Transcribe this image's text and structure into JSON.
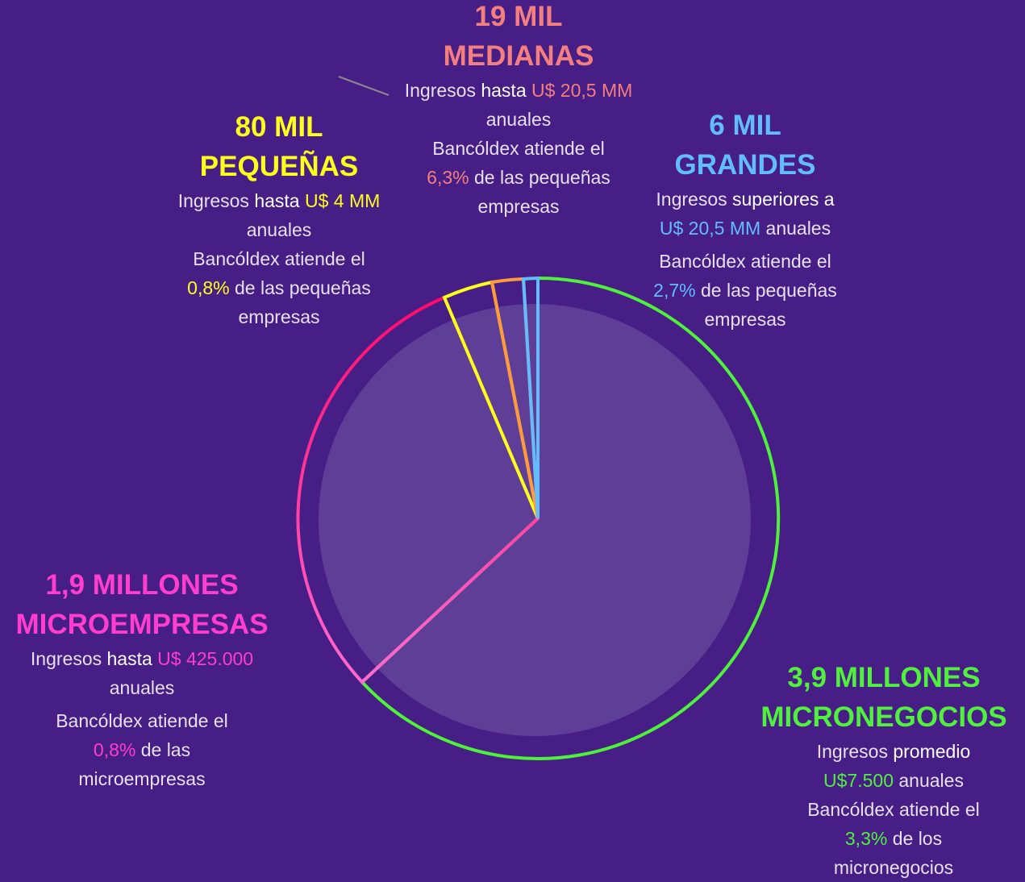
{
  "segments": [
    {
      "heading": [
        "19 MIL",
        "MEDIANAS"
      ],
      "body": [
        [
          "Ingresos",
          "hasta",
          "U$ 20,5 MM"
        ],
        [
          "anuales"
        ],
        [
          "Bancóldex atiende el"
        ],
        [
          "6,3%",
          "de las pequeñas"
        ],
        [
          "empresas"
        ]
      ]
    },
    {
      "heading": [
        "80 MIL",
        "PEQUEÑAS"
      ],
      "body": [
        [
          "Ingresos",
          "hasta",
          "U$ 4 MM"
        ],
        [
          "anuales"
        ],
        [
          "Bancóldex atiende el"
        ],
        [
          "0,8%",
          "de las pequeñas"
        ],
        [
          "empresas"
        ]
      ]
    },
    {
      "heading": [
        "6 MIL",
        "GRANDES"
      ],
      "body": [
        [
          "Ingresos",
          "superiores a"
        ],
        [
          "U$ 20,5 MM",
          "anuales"
        ],
        [
          "Bancóldex atiende el"
        ],
        [
          "2,7%",
          "de las pequeñas"
        ],
        [
          "empresas"
        ]
      ]
    },
    {
      "heading": [
        "1,9 MILLONES",
        "MICROEMPRESAS"
      ],
      "body": [
        [
          "Ingresos",
          "hasta",
          "U$ 425.000"
        ],
        [
          "anuales"
        ],
        [
          "Bancóldex atiende el"
        ],
        [
          "0,8%",
          "de las"
        ],
        [
          "microempresas"
        ]
      ]
    },
    {
      "heading": [
        "3,9 MILLONES",
        "MICRONEGOCIOS"
      ],
      "body": [
        [
          "Ingresos",
          "promedio"
        ],
        [
          "U$7.500",
          "anuales"
        ],
        [
          "Bancóldex atiende el"
        ],
        [
          "3,3%",
          "de los"
        ],
        [
          "micronegocios"
        ]
      ]
    }
  ]
}
